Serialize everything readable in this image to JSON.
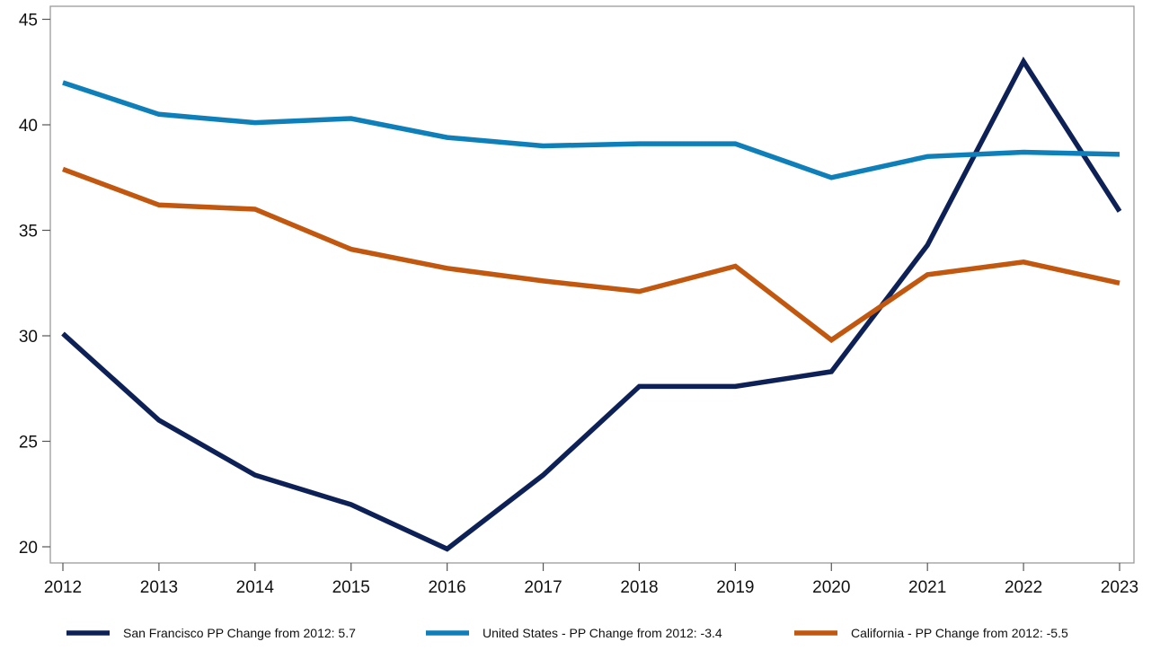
{
  "chart_data": {
    "type": "line",
    "title": "",
    "xlabel": "",
    "ylabel": "",
    "x": [
      2012,
      2013,
      2014,
      2015,
      2016,
      2017,
      2018,
      2019,
      2020,
      2021,
      2022,
      2023
    ],
    "xlim": [
      2012,
      2023
    ],
    "ylim": [
      19.2,
      45.6
    ],
    "yticks": [
      20,
      25,
      30,
      35,
      40,
      45
    ],
    "grid": false,
    "legend_position": "bottom",
    "series": [
      {
        "name": "San Francisco PP Change from 2012: 5.7",
        "color": "#0d2157",
        "values": [
          30.1,
          26.0,
          23.4,
          22.0,
          19.9,
          23.4,
          27.6,
          27.6,
          28.3,
          34.3,
          43.0,
          35.9
        ]
      },
      {
        "name": "United States - PP Change from 2012: -3.4",
        "color": "#0f7fba",
        "values": [
          42.0,
          40.5,
          40.1,
          40.3,
          39.4,
          39.0,
          39.1,
          39.1,
          37.5,
          38.5,
          38.7,
          38.6
        ]
      },
      {
        "name": "California - PP Change from 2012: -5.5",
        "color": "#c2570f",
        "values": [
          37.9,
          36.2,
          36.0,
          34.1,
          33.2,
          32.6,
          32.1,
          33.3,
          29.8,
          32.9,
          33.5,
          32.5
        ]
      }
    ]
  }
}
